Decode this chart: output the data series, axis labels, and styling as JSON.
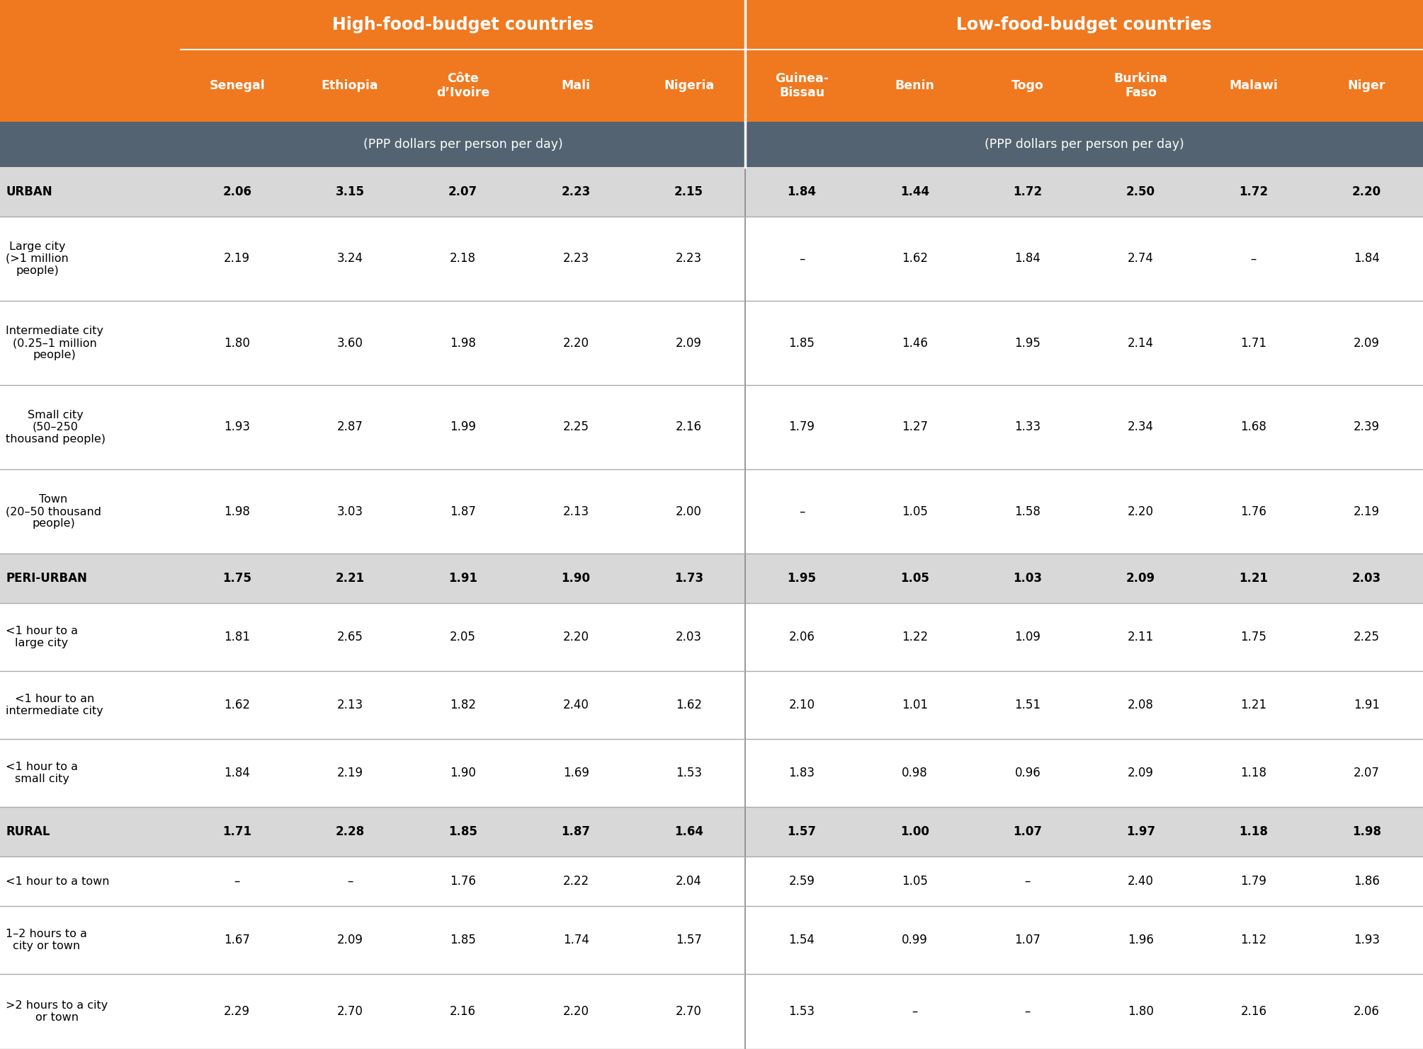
{
  "title_left": "High-food-budget countries",
  "title_right": "Low-food-budget countries",
  "header_orange_bg": "#F07920",
  "header_gray_bg": "#536371",
  "row_highlight_bg": "#D8D8D8",
  "row_white_bg": "#FFFFFF",
  "col_headers": [
    "Senegal",
    "Ethiopia",
    "Côte\nd’Ivoire",
    "Mali",
    "Nigeria",
    "Guinea-\nBissau",
    "Benin",
    "Togo",
    "Burkina\nFaso",
    "Malawi",
    "Niger"
  ],
  "unit_label": "(PPP dollars per person per day)",
  "rows": [
    {
      "label": "URBAN",
      "bold": true,
      "highlight": true,
      "values": [
        "2.06",
        "3.15",
        "2.07",
        "2.23",
        "2.15",
        "1.84",
        "1.44",
        "1.72",
        "2.50",
        "1.72",
        "2.20"
      ]
    },
    {
      "label": "Large city\n(>1 million\npeople)",
      "bold": false,
      "highlight": false,
      "values": [
        "2.19",
        "3.24",
        "2.18",
        "2.23",
        "2.23",
        "–",
        "1.62",
        "1.84",
        "2.74",
        "–",
        "1.84"
      ]
    },
    {
      "label": "Intermediate city\n(0.25–1 million\npeople)",
      "bold": false,
      "highlight": false,
      "values": [
        "1.80",
        "3.60",
        "1.98",
        "2.20",
        "2.09",
        "1.85",
        "1.46",
        "1.95",
        "2.14",
        "1.71",
        "2.09"
      ]
    },
    {
      "label": "Small city\n(50–250\nthousand people)",
      "bold": false,
      "highlight": false,
      "values": [
        "1.93",
        "2.87",
        "1.99",
        "2.25",
        "2.16",
        "1.79",
        "1.27",
        "1.33",
        "2.34",
        "1.68",
        "2.39"
      ]
    },
    {
      "label": "Town\n(20–50 thousand\npeople)",
      "bold": false,
      "highlight": false,
      "values": [
        "1.98",
        "3.03",
        "1.87",
        "2.13",
        "2.00",
        "–",
        "1.05",
        "1.58",
        "2.20",
        "1.76",
        "2.19"
      ]
    },
    {
      "label": "PERI-URBAN",
      "bold": true,
      "highlight": true,
      "values": [
        "1.75",
        "2.21",
        "1.91",
        "1.90",
        "1.73",
        "1.95",
        "1.05",
        "1.03",
        "2.09",
        "1.21",
        "2.03"
      ]
    },
    {
      "label": "<1 hour to a\nlarge city",
      "bold": false,
      "highlight": false,
      "values": [
        "1.81",
        "2.65",
        "2.05",
        "2.20",
        "2.03",
        "2.06",
        "1.22",
        "1.09",
        "2.11",
        "1.75",
        "2.25"
      ]
    },
    {
      "label": "<1 hour to an\nintermediate city",
      "bold": false,
      "highlight": false,
      "values": [
        "1.62",
        "2.13",
        "1.82",
        "2.40",
        "1.62",
        "2.10",
        "1.01",
        "1.51",
        "2.08",
        "1.21",
        "1.91"
      ]
    },
    {
      "label": "<1 hour to a\nsmall city",
      "bold": false,
      "highlight": false,
      "values": [
        "1.84",
        "2.19",
        "1.90",
        "1.69",
        "1.53",
        "1.83",
        "0.98",
        "0.96",
        "2.09",
        "1.18",
        "2.07"
      ]
    },
    {
      "label": "RURAL",
      "bold": true,
      "highlight": true,
      "values": [
        "1.71",
        "2.28",
        "1.85",
        "1.87",
        "1.64",
        "1.57",
        "1.00",
        "1.07",
        "1.97",
        "1.18",
        "1.98"
      ]
    },
    {
      "label": "<1 hour to a town",
      "bold": false,
      "highlight": false,
      "values": [
        "–",
        "–",
        "1.76",
        "2.22",
        "2.04",
        "2.59",
        "1.05",
        "–",
        "2.40",
        "1.79",
        "1.86"
      ]
    },
    {
      "label": "1–2 hours to a\ncity or town",
      "bold": false,
      "highlight": false,
      "values": [
        "1.67",
        "2.09",
        "1.85",
        "1.74",
        "1.57",
        "1.54",
        "0.99",
        "1.07",
        "1.96",
        "1.12",
        "1.93"
      ]
    },
    {
      "label": ">2 hours to a city\nor town",
      "bold": false,
      "highlight": false,
      "values": [
        "2.29",
        "2.70",
        "2.16",
        "2.20",
        "2.70",
        "1.53",
        "–",
        "–",
        "1.80",
        "2.16",
        "2.06"
      ]
    }
  ]
}
